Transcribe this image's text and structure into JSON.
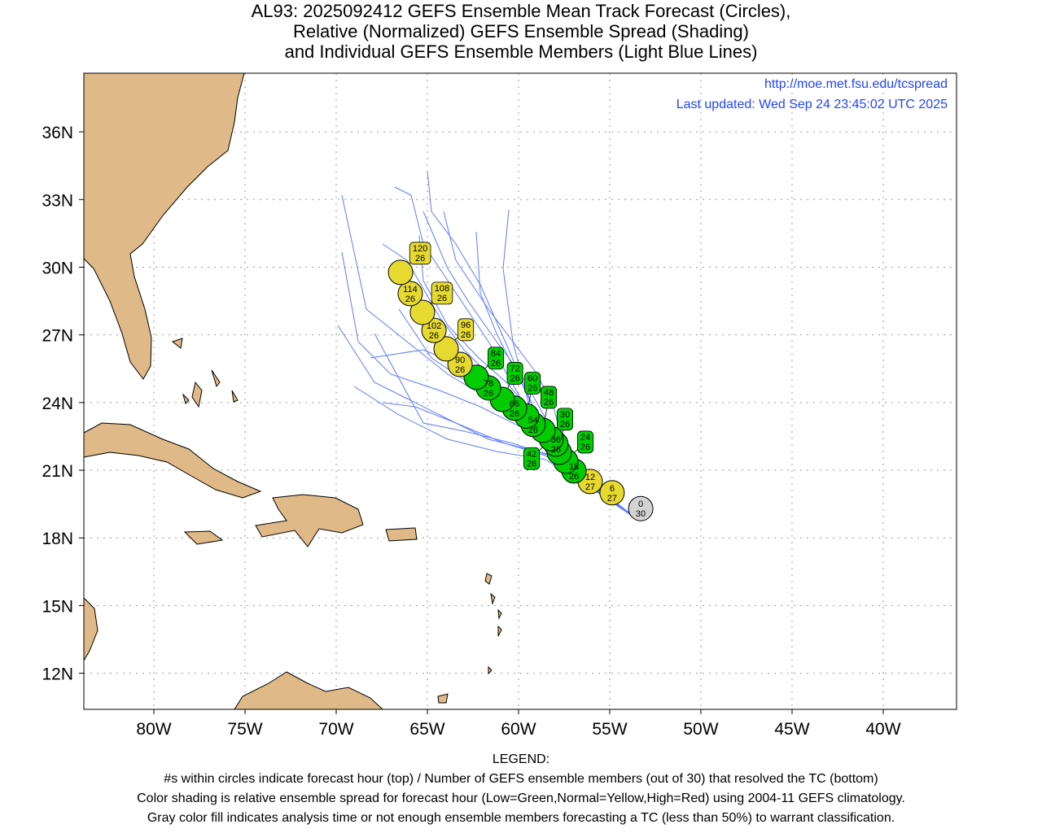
{
  "chart_data": {
    "type": "scatter",
    "title_lines": [
      "AL93: 2025092412 GEFS Ensemble Mean Track Forecast (Circles),",
      "Relative (Normalized) GEFS Ensemble Spread (Shading)",
      "and Individual GEFS Ensemble Members (Light Blue Lines)"
    ],
    "url": "http://moe.met.fsu.edu/tcspread",
    "updated": "Last updated: Wed Sep 24 23:45:02 UTC 2025",
    "xlim": [
      -83.84,
      -35.98
    ],
    "ylim": [
      10.4,
      38.6
    ],
    "x_ticks": [
      {
        "v": -80,
        "l": "80W"
      },
      {
        "v": -75,
        "l": "75W"
      },
      {
        "v": -70,
        "l": "70W"
      },
      {
        "v": -65,
        "l": "65W"
      },
      {
        "v": -60,
        "l": "60W"
      },
      {
        "v": -55,
        "l": "55W"
      },
      {
        "v": -50,
        "l": "50W"
      },
      {
        "v": -45,
        "l": "45W"
      },
      {
        "v": -40,
        "l": "40W"
      }
    ],
    "y_ticks": [
      {
        "v": 12,
        "l": "12N"
      },
      {
        "v": 15,
        "l": "15N"
      },
      {
        "v": 18,
        "l": "18N"
      },
      {
        "v": 21,
        "l": "21N"
      },
      {
        "v": 24,
        "l": "24N"
      },
      {
        "v": 27,
        "l": "27N"
      },
      {
        "v": 30,
        "l": "30N"
      },
      {
        "v": 33,
        "l": "33N"
      },
      {
        "v": 36,
        "l": "36N"
      }
    ],
    "colors": {
      "gray": "#d3d3d3",
      "green": "#00cc00",
      "yellow": "#e6d930",
      "member": "#5c7cff",
      "land": "#dfb987"
    },
    "points": [
      {
        "hour": "120",
        "members": "26",
        "lon": -66.47,
        "lat": 29.77,
        "spread": "yellow"
      },
      {
        "hour": "114",
        "members": "26",
        "lon": -65.94,
        "lat": 28.83,
        "spread": "yellow"
      },
      {
        "hour": "108",
        "members": "26",
        "lon": -65.27,
        "lat": 28.0,
        "spread": "yellow"
      },
      {
        "hour": "102",
        "members": "26",
        "lon": -64.64,
        "lat": 27.2,
        "spread": "yellow"
      },
      {
        "hour": "96",
        "members": "26",
        "lon": -63.97,
        "lat": 26.38,
        "spread": "yellow"
      },
      {
        "hour": "90",
        "members": "26",
        "lon": -63.21,
        "lat": 25.69,
        "spread": "yellow"
      },
      {
        "hour": "84",
        "members": "26",
        "lon": -62.32,
        "lat": 25.12,
        "spread": "green"
      },
      {
        "hour": "78",
        "members": "26",
        "lon": -61.65,
        "lat": 24.65,
        "spread": "green"
      },
      {
        "hour": "72",
        "members": "26",
        "lon": -60.89,
        "lat": 24.14,
        "spread": "green"
      },
      {
        "hour": "66",
        "members": "26",
        "lon": -60.22,
        "lat": 23.75,
        "spread": "green"
      },
      {
        "hour": "60",
        "members": "26",
        "lon": -59.55,
        "lat": 23.4,
        "spread": "green"
      },
      {
        "hour": "54",
        "members": "26",
        "lon": -59.2,
        "lat": 23.03,
        "spread": "green"
      },
      {
        "hour": "48",
        "members": "26",
        "lon": -58.66,
        "lat": 22.77,
        "spread": "green"
      },
      {
        "hour": "42",
        "members": "26",
        "lon": -58.21,
        "lat": 22.4,
        "spread": "green"
      },
      {
        "hour": "36",
        "members": "26",
        "lon": -57.95,
        "lat": 22.16,
        "spread": "green"
      },
      {
        "hour": "30",
        "members": "26",
        "lon": -57.77,
        "lat": 21.8,
        "spread": "green"
      },
      {
        "hour": "24",
        "members": "26",
        "lon": -57.41,
        "lat": 21.4,
        "spread": "green"
      },
      {
        "hour": "18",
        "members": "26",
        "lon": -56.96,
        "lat": 20.97,
        "spread": "green"
      },
      {
        "hour": "12",
        "members": "27",
        "lon": -56.07,
        "lat": 20.5,
        "spread": "yellow"
      },
      {
        "hour": "6",
        "members": "27",
        "lon": -54.87,
        "lat": 20.0,
        "spread": "yellow"
      },
      {
        "hour": "0",
        "members": "30",
        "lon": -53.3,
        "lat": 19.3,
        "spread": "gray"
      }
    ]
  },
  "legend": {
    "heading": "LEGEND:",
    "line1": "#s within circles indicate forecast hour (top) / Number of GEFS ensemble members (out of 30) that resolved the TC (bottom)",
    "line2": "Color shading is relative ensemble spread for forecast hour (Low=Green,Normal=Yellow,High=Red) using 2004-11 GEFS climatology.",
    "line3": "Gray color fill indicates analysis time or not enough ensemble members forecasting a TC (less than 50%) to warrant classification."
  }
}
